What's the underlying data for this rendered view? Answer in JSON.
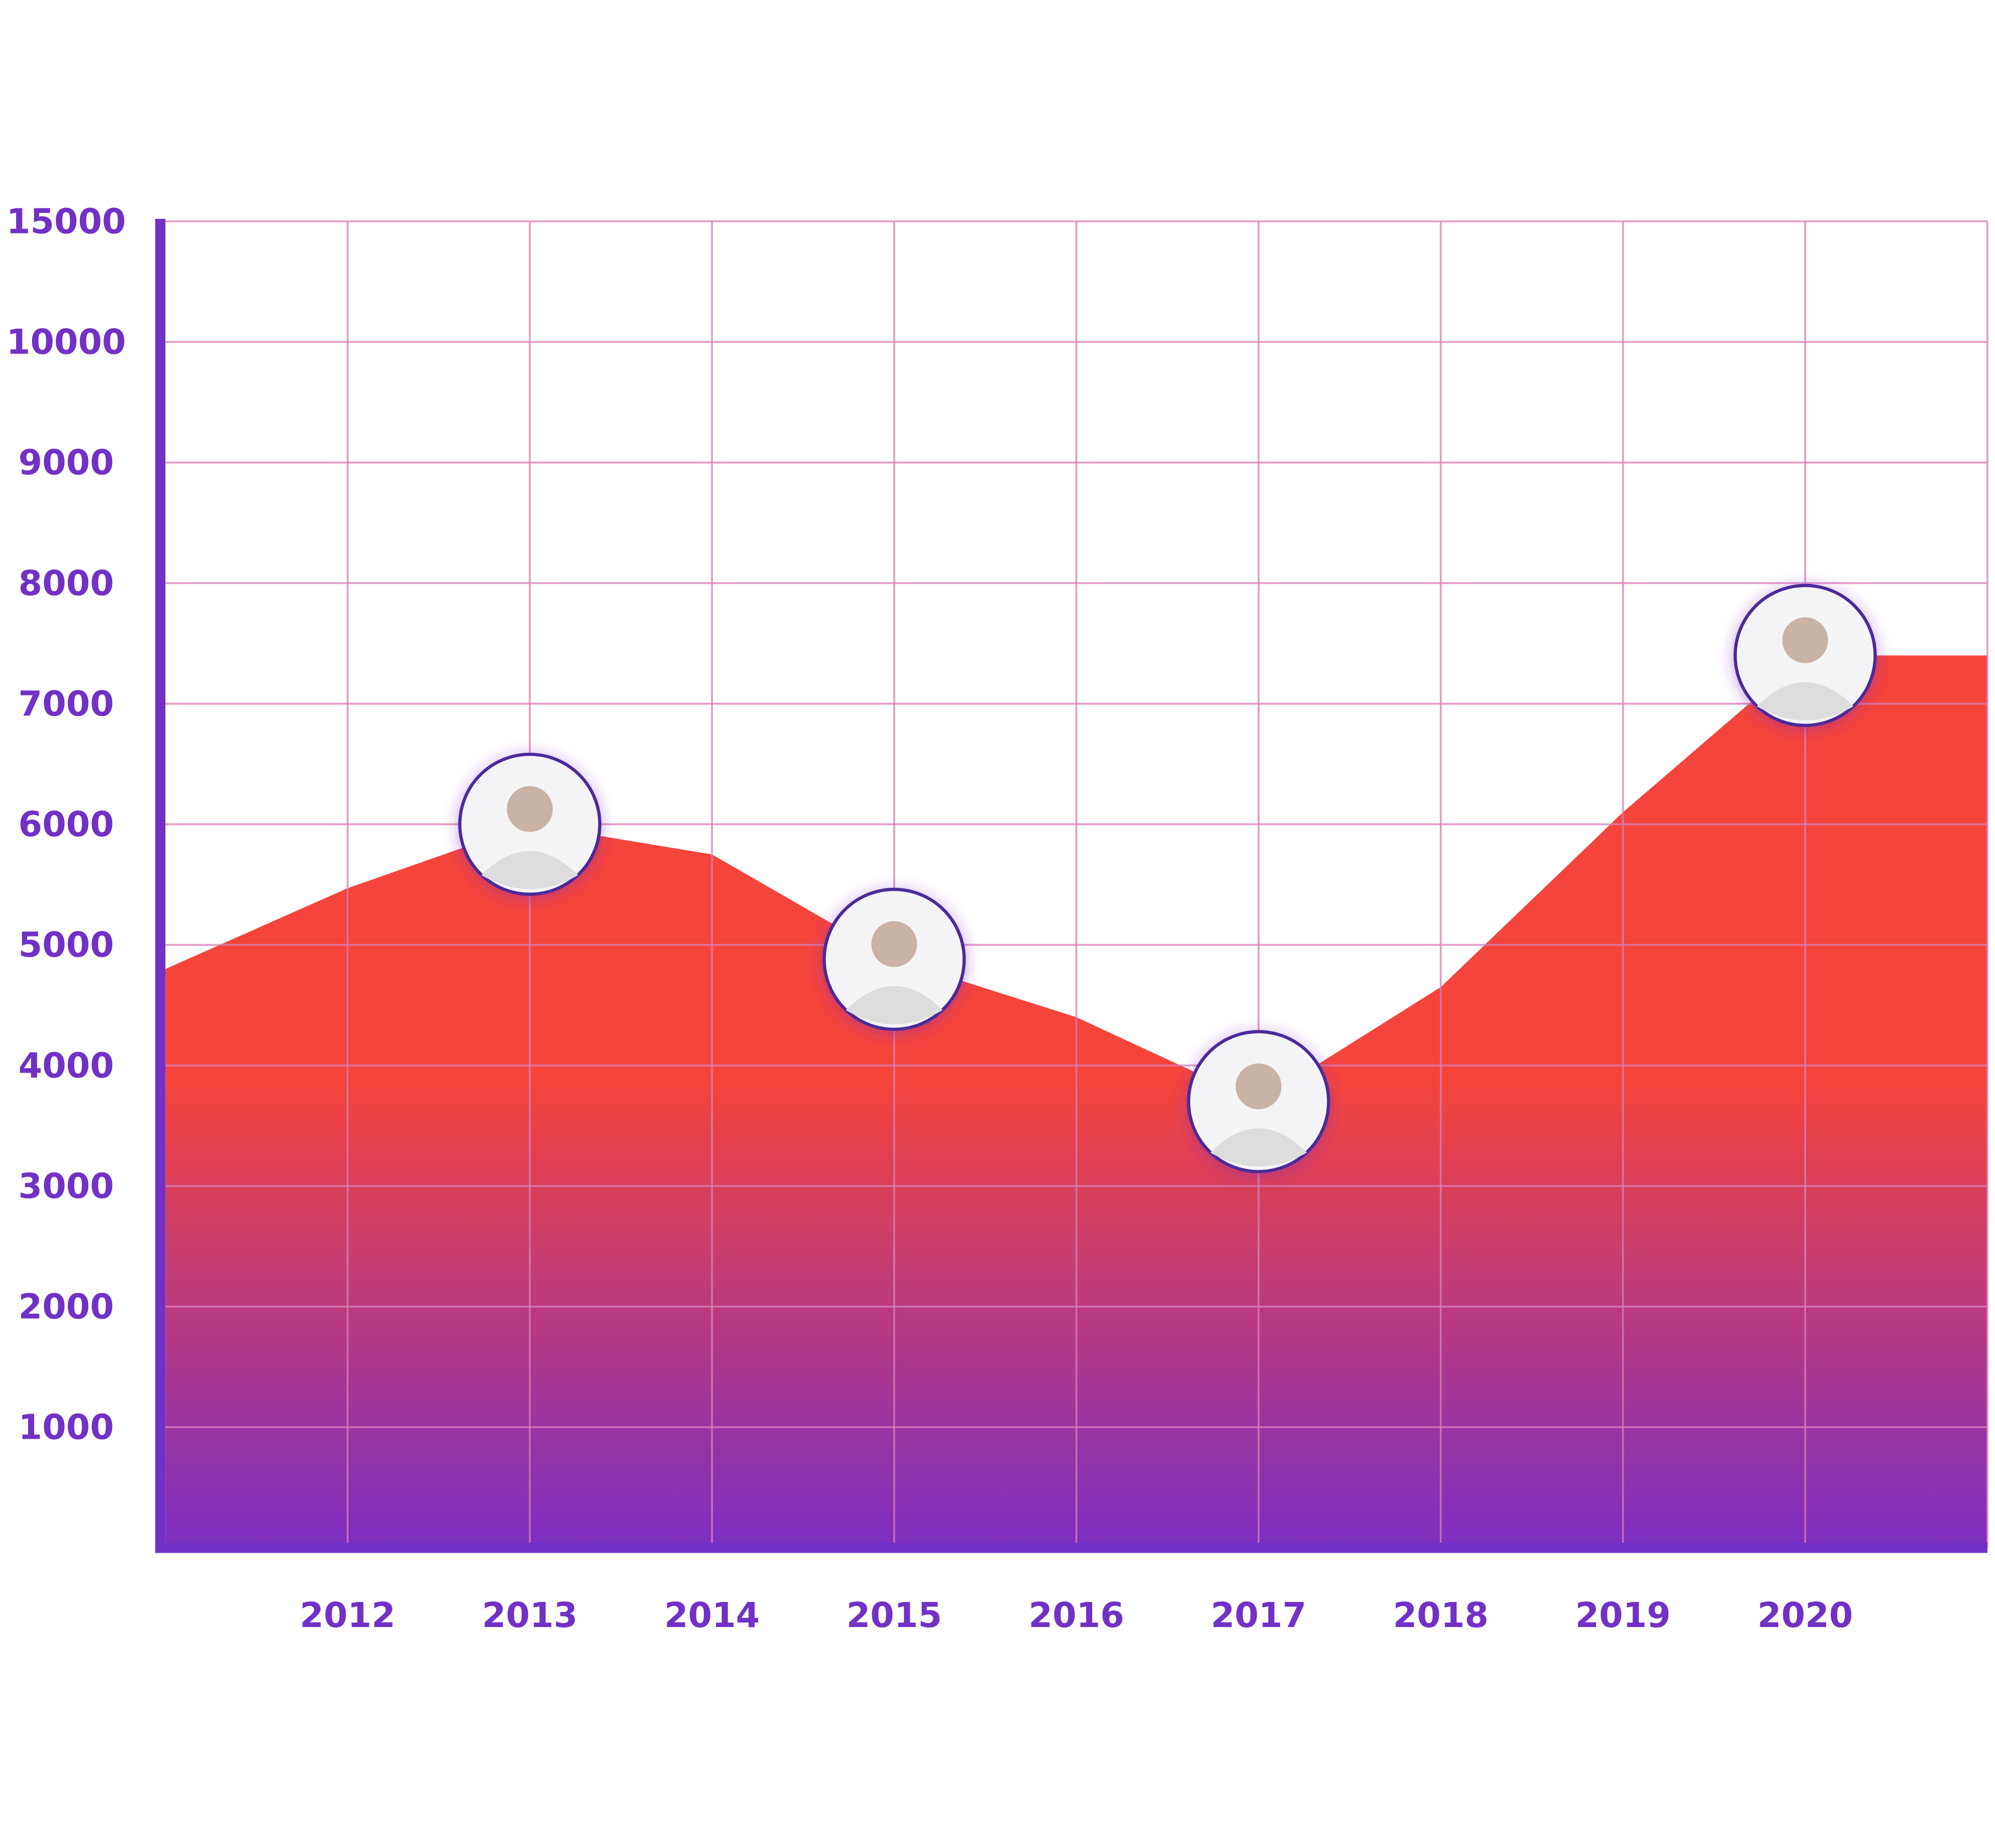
{
  "chart_data": {
    "type": "area",
    "categories": [
      null,
      "2012",
      "2013",
      "2014",
      "2015",
      "2016",
      "2017",
      "2018",
      "2019",
      "2020",
      null
    ],
    "values": [
      4800,
      5470,
      6000,
      5750,
      4880,
      4400,
      3700,
      4650,
      6100,
      7400,
      7400
    ],
    "color": [
      "#f5443c",
      "#7b2fc2"
    ],
    "ylim": [
      0,
      15000
    ],
    "yticks": [
      1000,
      2000,
      3000,
      4000,
      5000,
      6000,
      7000,
      8000,
      9000,
      10000,
      15000
    ],
    "grid": true,
    "avatar_points": [
      2,
      4,
      6,
      9
    ]
  }
}
